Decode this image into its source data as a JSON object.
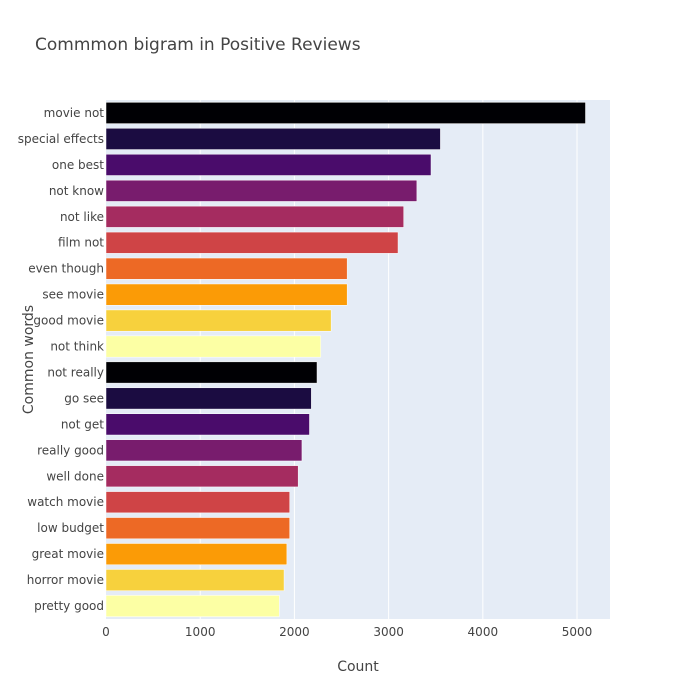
{
  "chart_data": {
    "type": "bar",
    "orientation": "horizontal",
    "title": "Commmon bigram in Positive Reviews",
    "xlabel": "Count",
    "ylabel": "Common words",
    "xlim": [
      0,
      5350
    ],
    "xticks": [
      0,
      1000,
      2000,
      3000,
      4000,
      5000
    ],
    "grid": true,
    "categories": [
      "movie not",
      "special effects",
      "one best",
      "not know",
      "not like",
      "film not",
      "even though",
      "see movie",
      "good movie",
      "not think",
      "not really",
      "go see",
      "not get",
      "really good",
      "well done",
      "watch movie",
      "low budget",
      "great movie",
      "horror movie",
      "pretty good"
    ],
    "values": [
      5090,
      3550,
      3450,
      3300,
      3160,
      3100,
      2560,
      2560,
      2390,
      2280,
      2240,
      2180,
      2160,
      2080,
      2040,
      1950,
      1950,
      1920,
      1890,
      1840
    ],
    "colors": [
      "#000004",
      "#1b0c41",
      "#4a0c6b",
      "#781c6d",
      "#a52c60",
      "#cf4446",
      "#ed6925",
      "#fb9b06",
      "#f7d13d",
      "#fcffa4",
      "#000004",
      "#1b0c41",
      "#4a0c6b",
      "#781c6d",
      "#a52c60",
      "#cf4446",
      "#ed6925",
      "#fb9b06",
      "#f7d13d",
      "#fcffa4"
    ],
    "plot_background": "#e5ecf6",
    "grid_color": "#ffffff"
  }
}
